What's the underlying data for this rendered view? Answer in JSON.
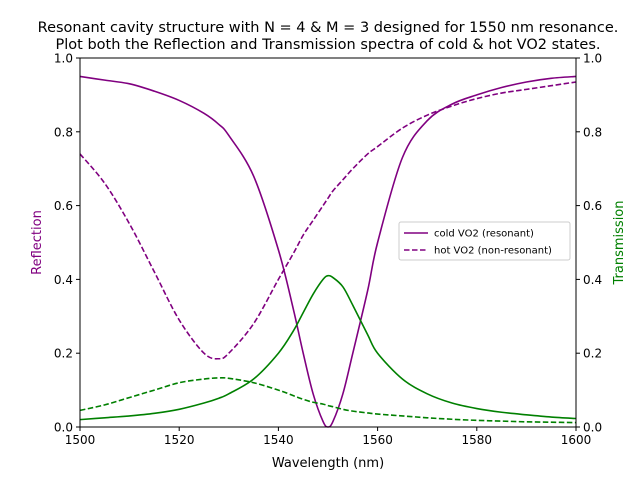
{
  "chart_data": {
    "type": "line",
    "title_lines": [
      "Resonant cavity structure with N = 4 & M = 3 designed for 1550 nm resonance.",
      "Plot both the Reflection and Transmission spectra of cold & hot VO2 states."
    ],
    "xlabel": "Wavelength (nm)",
    "ylabel_left": "Reflection",
    "ylabel_right": "Transmission",
    "xlim": [
      1500,
      1600
    ],
    "ylim_left": [
      0,
      1
    ],
    "ylim_right": [
      0,
      1
    ],
    "x_ticks": [
      "1500",
      "1520",
      "1540",
      "1560",
      "1580",
      "1600"
    ],
    "y_ticks": [
      "0.0",
      "0.2",
      "0.4",
      "0.6",
      "0.8",
      "1.0"
    ],
    "grid": false,
    "legend": {
      "placement": "center-right",
      "entries": [
        "cold VO2 (resonant)",
        "hot VO2 (non-resonant)"
      ]
    },
    "colors": {
      "reflection": "#800080",
      "transmission": "#008000",
      "axis": "#000000"
    },
    "x": [
      1500,
      1505,
      1510,
      1515,
      1520,
      1525,
      1528,
      1530,
      1535,
      1540,
      1543,
      1545,
      1547,
      1549,
      1550,
      1551,
      1553,
      1555,
      1558,
      1560,
      1565,
      1570,
      1575,
      1580,
      1585,
      1590,
      1595,
      1600
    ],
    "series": [
      {
        "legend": "cold VO2 (resonant)",
        "axis": "left",
        "color": "#800080",
        "style": "solid",
        "values": [
          0.95,
          0.94,
          0.93,
          0.91,
          0.885,
          0.85,
          0.82,
          0.79,
          0.68,
          0.48,
          0.32,
          0.2,
          0.09,
          0.015,
          0.0,
          0.015,
          0.09,
          0.2,
          0.37,
          0.5,
          0.73,
          0.83,
          0.875,
          0.9,
          0.92,
          0.935,
          0.945,
          0.95
        ]
      },
      {
        "legend": "hot VO2 (non-resonant)",
        "axis": "left",
        "color": "#800080",
        "style": "dashed",
        "values": [
          0.74,
          0.66,
          0.55,
          0.42,
          0.29,
          0.2,
          0.185,
          0.2,
          0.28,
          0.4,
          0.47,
          0.52,
          0.56,
          0.6,
          0.62,
          0.64,
          0.67,
          0.7,
          0.74,
          0.76,
          0.81,
          0.845,
          0.87,
          0.89,
          0.905,
          0.915,
          0.925,
          0.935
        ]
      },
      {
        "axis": "right",
        "color": "#008000",
        "style": "solid",
        "values": [
          0.02,
          0.025,
          0.03,
          0.037,
          0.048,
          0.065,
          0.078,
          0.09,
          0.13,
          0.2,
          0.26,
          0.31,
          0.36,
          0.4,
          0.41,
          0.405,
          0.38,
          0.33,
          0.25,
          0.2,
          0.13,
          0.09,
          0.065,
          0.05,
          0.04,
          0.033,
          0.027,
          0.023
        ]
      },
      {
        "axis": "right",
        "color": "#008000",
        "style": "dashed",
        "values": [
          0.045,
          0.06,
          0.08,
          0.1,
          0.12,
          0.13,
          0.133,
          0.132,
          0.12,
          0.1,
          0.085,
          0.075,
          0.067,
          0.062,
          0.058,
          0.055,
          0.048,
          0.043,
          0.038,
          0.035,
          0.03,
          0.025,
          0.021,
          0.018,
          0.016,
          0.014,
          0.013,
          0.012
        ]
      }
    ]
  }
}
